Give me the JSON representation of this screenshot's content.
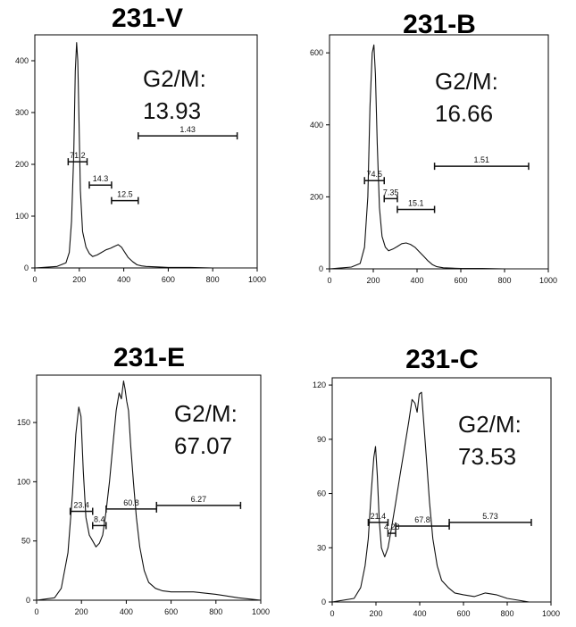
{
  "chart_data": [
    {
      "type": "line",
      "title": "231-V",
      "annotation": [
        "G2/M:",
        "13.93"
      ],
      "xlim": [
        0,
        1000
      ],
      "ylim": [
        0,
        450
      ],
      "xticks": [
        0,
        200,
        400,
        600,
        800,
        1000
      ],
      "yticks": [
        0,
        100,
        200,
        300,
        400
      ],
      "series": [
        {
          "x": [
            0,
            100,
            140,
            155,
            165,
            175,
            182,
            188,
            193,
            198,
            205,
            215,
            230,
            245,
            260,
            280,
            300,
            320,
            340,
            360,
            375,
            390,
            405,
            420,
            440,
            460,
            480,
            500,
            550,
            600,
            700,
            800,
            900,
            1000
          ],
          "values": [
            0,
            3,
            10,
            30,
            90,
            220,
            380,
            435,
            400,
            300,
            150,
            70,
            40,
            28,
            22,
            25,
            30,
            35,
            38,
            42,
            45,
            40,
            30,
            20,
            12,
            6,
            4,
            3,
            2,
            1,
            1,
            0,
            0,
            0
          ]
        }
      ],
      "gates": [
        {
          "label": "71.2",
          "x1": 150,
          "x2": 235,
          "y": 205
        },
        {
          "label": "14.3",
          "x1": 245,
          "x2": 345,
          "y": 160
        },
        {
          "label": "12.5",
          "x1": 345,
          "x2": 465,
          "y": 130
        },
        {
          "label": "1.43",
          "x1": 465,
          "x2": 910,
          "y": 255
        }
      ]
    },
    {
      "type": "line",
      "title": "231-B",
      "annotation": [
        "G2/M:",
        "16.66"
      ],
      "xlim": [
        0,
        1000
      ],
      "ylim": [
        0,
        650
      ],
      "xticks": [
        0,
        200,
        400,
        600,
        800,
        1000
      ],
      "yticks": [
        0,
        200,
        400,
        600
      ],
      "series": [
        {
          "x": [
            0,
            100,
            140,
            160,
            175,
            185,
            195,
            203,
            210,
            218,
            228,
            240,
            255,
            270,
            290,
            310,
            330,
            350,
            370,
            390,
            410,
            430,
            450,
            470,
            490,
            520,
            560,
            600,
            700,
            800,
            900,
            1000
          ],
          "values": [
            0,
            5,
            15,
            60,
            200,
            450,
            600,
            622,
            540,
            350,
            170,
            90,
            60,
            50,
            55,
            62,
            70,
            72,
            68,
            60,
            48,
            35,
            22,
            12,
            6,
            3,
            2,
            1,
            1,
            0,
            0,
            0
          ]
        }
      ],
      "gates": [
        {
          "label": "74.5",
          "x1": 160,
          "x2": 250,
          "y": 245
        },
        {
          "label": "7.35",
          "x1": 250,
          "x2": 310,
          "y": 195
        },
        {
          "label": "15.1",
          "x1": 310,
          "x2": 480,
          "y": 165
        },
        {
          "label": "1.51",
          "x1": 480,
          "x2": 910,
          "y": 285
        }
      ]
    },
    {
      "type": "line",
      "title": "231-E",
      "annotation": [
        "G2/M:",
        "67.07"
      ],
      "xlim": [
        0,
        1000
      ],
      "ylim": [
        0,
        190
      ],
      "xticks": [
        0,
        200,
        400,
        600,
        800,
        1000
      ],
      "yticks": [
        0,
        50,
        100,
        150
      ],
      "series": [
        {
          "x": [
            0,
            80,
            110,
            140,
            160,
            175,
            188,
            198,
            208,
            220,
            235,
            250,
            265,
            280,
            295,
            310,
            325,
            340,
            355,
            368,
            378,
            388,
            395,
            402,
            410,
            420,
            432,
            445,
            460,
            480,
            500,
            530,
            560,
            600,
            700,
            800,
            900,
            1000
          ],
          "values": [
            0,
            2,
            10,
            40,
            90,
            140,
            163,
            155,
            110,
            70,
            55,
            50,
            45,
            48,
            55,
            75,
            100,
            130,
            160,
            175,
            170,
            185,
            178,
            168,
            160,
            130,
            100,
            70,
            45,
            25,
            15,
            10,
            8,
            7,
            7,
            5,
            2,
            0
          ]
        }
      ],
      "gates": [
        {
          "label": "23.4",
          "x1": 150,
          "x2": 250,
          "y": 75
        },
        {
          "label": "8.4",
          "x1": 250,
          "x2": 310,
          "y": 63
        },
        {
          "label": "60.8",
          "x1": 310,
          "x2": 535,
          "y": 77
        },
        {
          "label": "6.27",
          "x1": 535,
          "x2": 910,
          "y": 80
        }
      ]
    },
    {
      "type": "line",
      "title": "231-C",
      "annotation": [
        "G2/M:",
        "73.53"
      ],
      "xlim": [
        0,
        1000
      ],
      "ylim": [
        0,
        124
      ],
      "xticks": [
        0,
        200,
        400,
        600,
        800,
        1000
      ],
      "yticks": [
        0,
        30,
        60,
        90,
        120
      ],
      "series": [
        {
          "x": [
            0,
            100,
            130,
            150,
            165,
            178,
            190,
            198,
            206,
            215,
            225,
            240,
            255,
            270,
            290,
            310,
            330,
            350,
            365,
            378,
            388,
            398,
            408,
            418,
            430,
            445,
            460,
            480,
            500,
            530,
            560,
            600,
            650,
            700,
            750,
            800,
            850,
            900,
            1000
          ],
          "values": [
            0,
            2,
            8,
            20,
            35,
            60,
            80,
            86,
            70,
            45,
            30,
            25,
            30,
            40,
            55,
            70,
            85,
            100,
            112,
            110,
            105,
            115,
            116,
            100,
            80,
            55,
            35,
            20,
            12,
            8,
            5,
            4,
            3,
            5,
            4,
            2,
            1,
            0,
            0
          ]
        }
      ],
      "gates": [
        {
          "label": "21.4",
          "x1": 165,
          "x2": 255,
          "y": 44
        },
        {
          "label": "4.28",
          "x1": 255,
          "x2": 290,
          "y": 38
        },
        {
          "label": "67.8",
          "x1": 290,
          "x2": 535,
          "y": 42
        },
        {
          "label": "5.73",
          "x1": 535,
          "x2": 910,
          "y": 44
        }
      ]
    }
  ]
}
